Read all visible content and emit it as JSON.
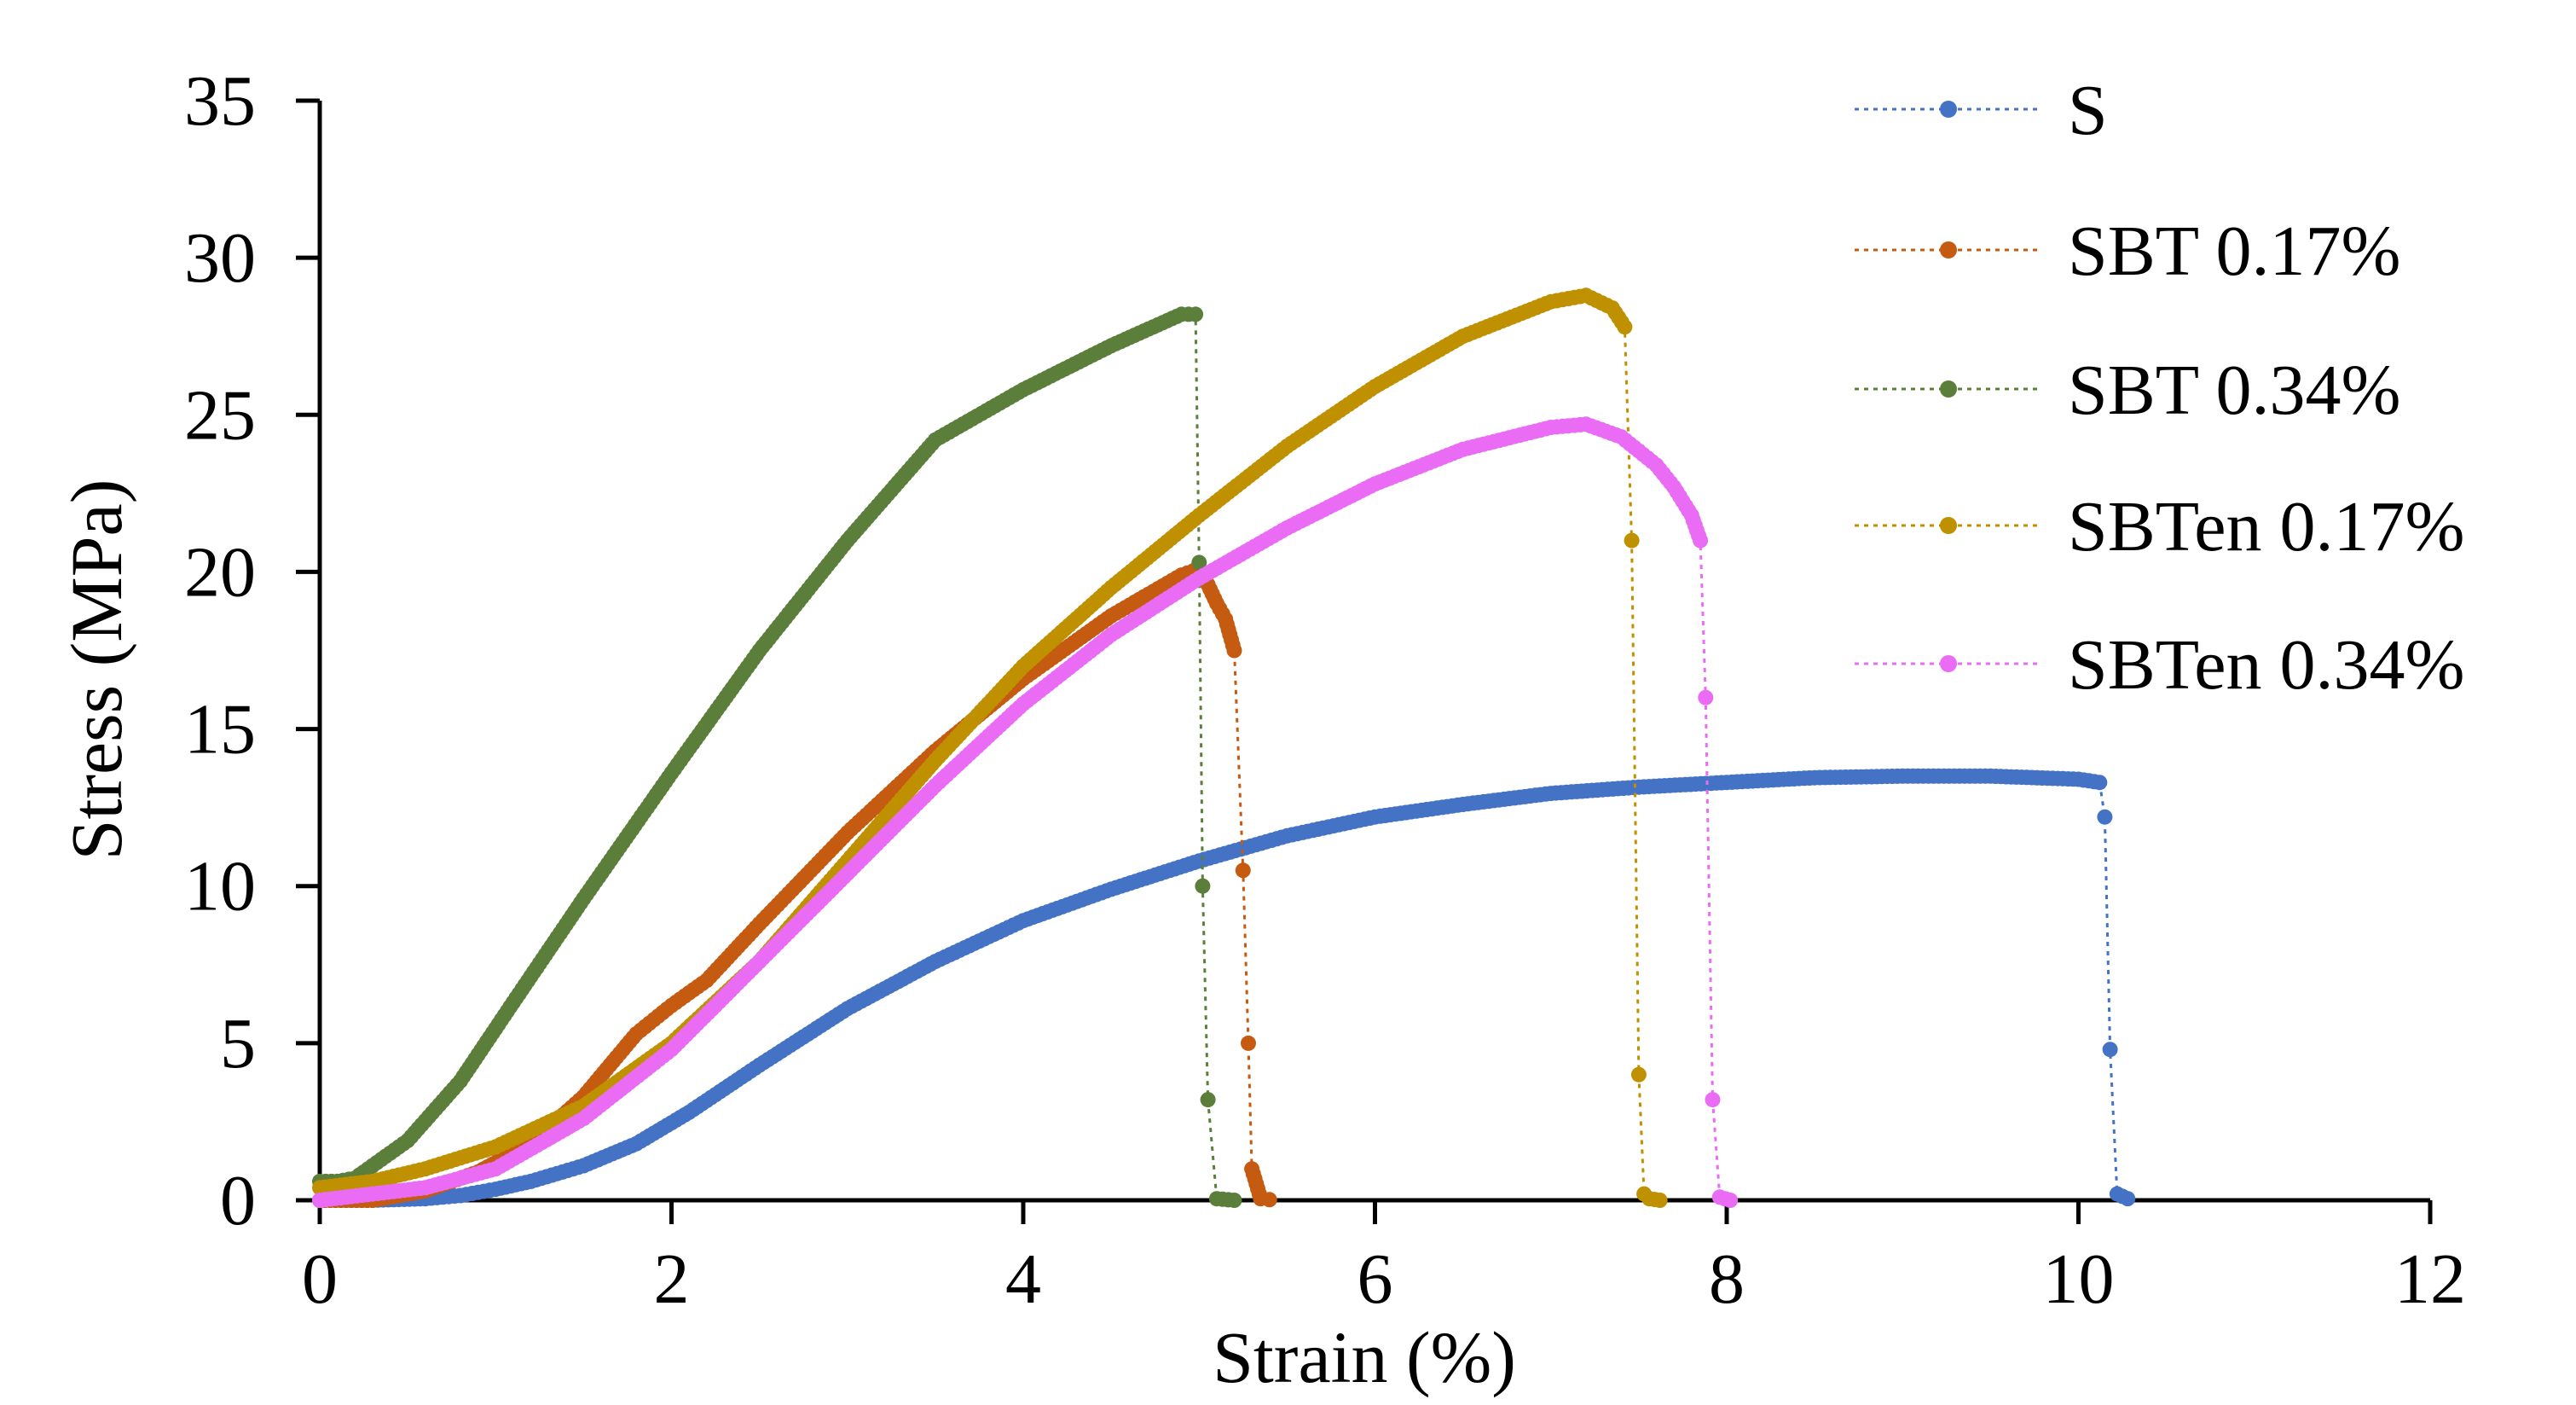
{
  "chart_data": {
    "type": "scatter",
    "title": "",
    "xlabel": "Strain (%)",
    "ylabel": "Stress (MPa)",
    "xlim": [
      0,
      12
    ],
    "ylim": [
      0,
      35
    ],
    "xticks": [
      "0",
      "2",
      "4",
      "6",
      "8",
      "10",
      "12"
    ],
    "yticks": [
      "0",
      "5",
      "10",
      "15",
      "20",
      "25",
      "30",
      "35"
    ],
    "grid": false,
    "legend_position": "top-right",
    "series": [
      {
        "name": "S",
        "color": "#4472C4",
        "x": [
          0,
          0.3,
          0.6,
          0.8,
          1.0,
          1.2,
          1.5,
          1.8,
          2.1,
          2.5,
          3.0,
          3.5,
          4.0,
          4.5,
          5.0,
          5.5,
          6.0,
          6.5,
          7.0,
          7.5,
          8.0,
          8.5,
          9.0,
          9.5,
          10.0,
          10.12,
          10.15,
          10.18,
          10.22,
          10.28
        ],
        "y": [
          0,
          0,
          0.05,
          0.15,
          0.35,
          0.6,
          1.1,
          1.8,
          2.8,
          4.3,
          6.1,
          7.6,
          8.9,
          9.9,
          10.8,
          11.6,
          12.2,
          12.6,
          12.95,
          13.15,
          13.3,
          13.45,
          13.5,
          13.5,
          13.4,
          13.3,
          12.2,
          4.8,
          0.2,
          0.05
        ]
      },
      {
        "name": "SBT 0.17%",
        "color": "#C55A11",
        "x": [
          0,
          0.3,
          0.6,
          0.9,
          1.2,
          1.5,
          1.8,
          2.0,
          2.2,
          2.5,
          3.0,
          3.5,
          4.0,
          4.5,
          4.9,
          5.0,
          5.05,
          5.1,
          5.15,
          5.2,
          5.25,
          5.28,
          5.3,
          5.35,
          5.4
        ],
        "y": [
          0,
          0,
          0.3,
          0.9,
          1.8,
          3.3,
          5.3,
          6.2,
          7.0,
          8.8,
          11.7,
          14.3,
          16.6,
          18.6,
          19.9,
          20.1,
          19.6,
          19.0,
          18.5,
          17.5,
          10.5,
          5.0,
          1.0,
          0.05,
          0.02
        ]
      },
      {
        "name": "SBT 0.34%",
        "color": "#5B7F3B",
        "x": [
          0,
          0.1,
          0.2,
          0.5,
          0.8,
          1.1,
          1.5,
          2.0,
          2.5,
          3.0,
          3.5,
          4.0,
          4.5,
          4.9,
          4.98,
          5.0,
          5.02,
          5.05,
          5.1,
          5.2
        ],
        "y": [
          0.6,
          0.6,
          0.7,
          1.9,
          3.8,
          6.3,
          9.6,
          13.6,
          17.5,
          21.0,
          24.2,
          25.8,
          27.2,
          28.2,
          28.2,
          20.3,
          10.0,
          3.2,
          0.05,
          0.0
        ]
      },
      {
        "name": "SBTen 0.17%",
        "color": "#BF9000",
        "x": [
          0,
          0.3,
          0.6,
          1.0,
          1.5,
          2.0,
          2.5,
          3.0,
          3.5,
          4.0,
          4.5,
          5.0,
          5.5,
          6.0,
          6.5,
          7.0,
          7.2,
          7.35,
          7.42,
          7.46,
          7.5,
          7.53,
          7.56,
          7.62
        ],
        "y": [
          0.4,
          0.6,
          1.0,
          1.7,
          3.0,
          5.0,
          7.6,
          10.8,
          14.0,
          17.0,
          19.5,
          21.8,
          24.0,
          25.9,
          27.5,
          28.6,
          28.8,
          28.4,
          27.8,
          21.0,
          4.0,
          0.2,
          0.05,
          0.0
        ]
      },
      {
        "name": "SBTen 0.34%",
        "color": "#EA6CF5",
        "x": [
          0,
          0.3,
          0.6,
          1.0,
          1.5,
          2.0,
          2.5,
          3.0,
          3.5,
          4.0,
          4.5,
          5.0,
          5.5,
          6.0,
          6.5,
          7.0,
          7.2,
          7.4,
          7.6,
          7.7,
          7.8,
          7.85,
          7.88,
          7.92,
          7.96,
          8.02
        ],
        "y": [
          0.0,
          0.2,
          0.4,
          1.0,
          2.6,
          4.8,
          7.6,
          10.4,
          13.2,
          15.8,
          18.0,
          19.8,
          21.4,
          22.8,
          23.9,
          24.6,
          24.7,
          24.3,
          23.4,
          22.7,
          21.8,
          21.0,
          16.0,
          3.2,
          0.1,
          0.0
        ]
      }
    ]
  }
}
